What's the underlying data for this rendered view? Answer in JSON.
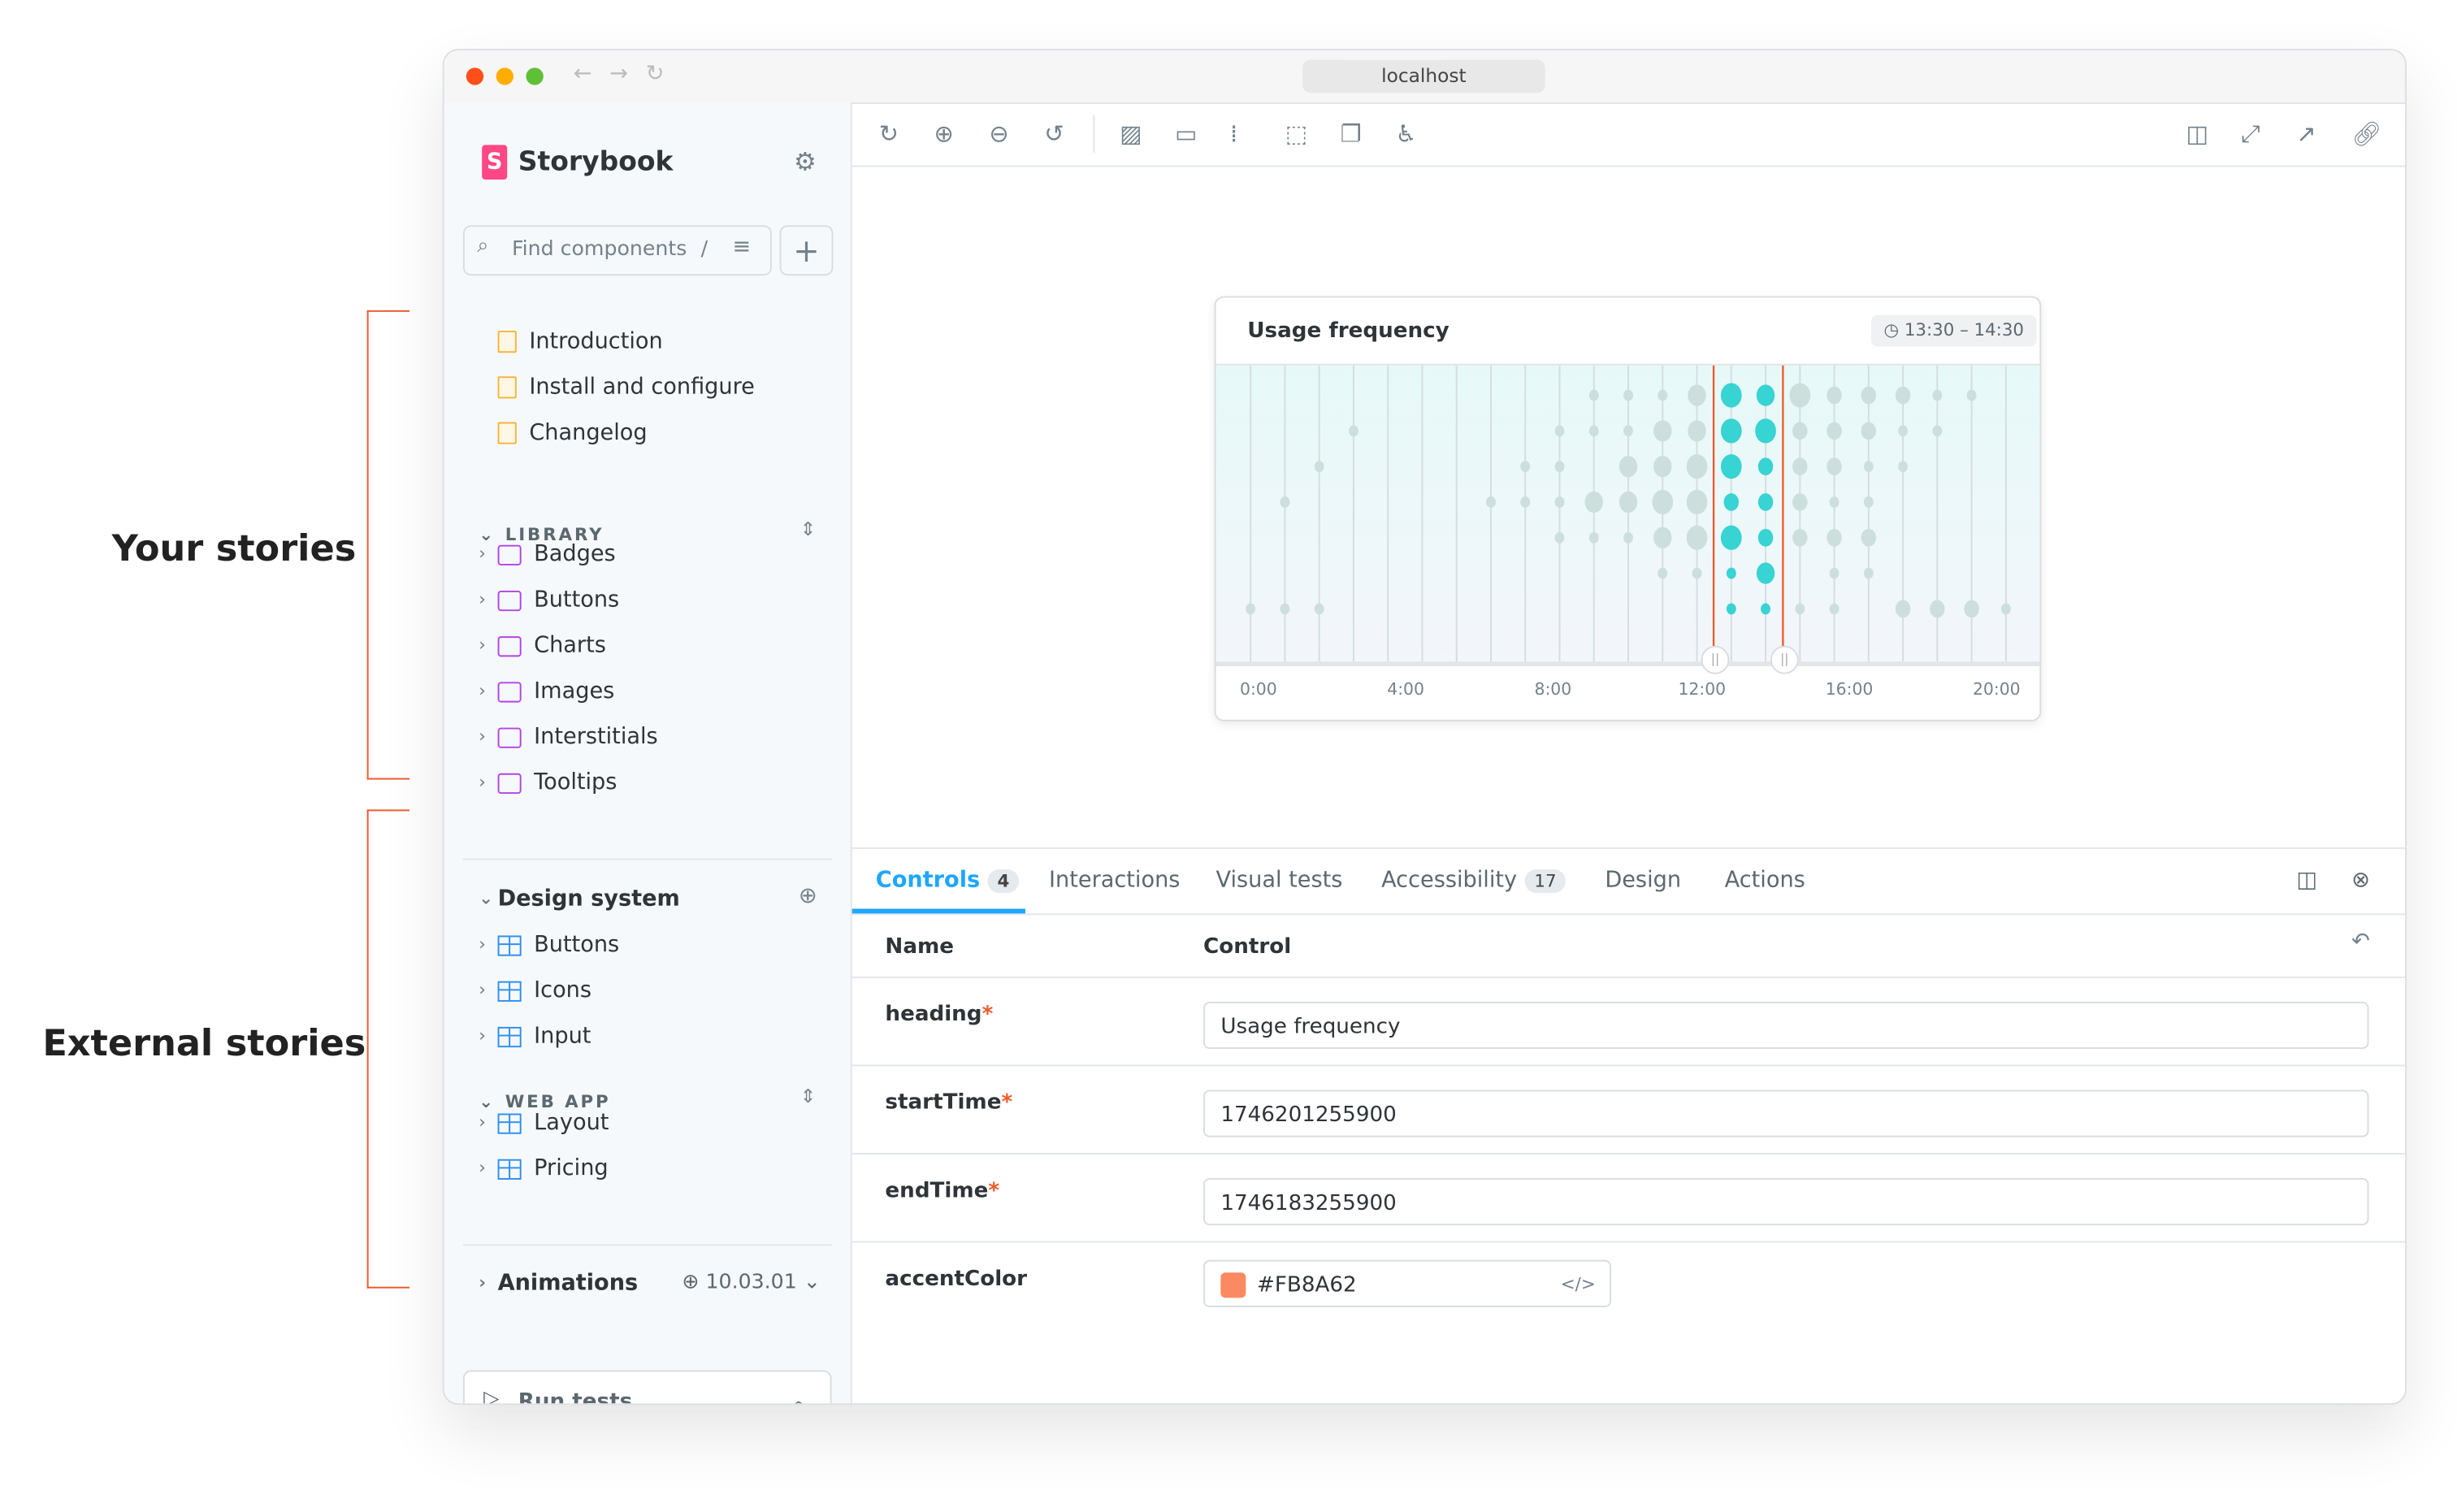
{
  "annotations": {
    "your_stories": "Your stories",
    "external_stories": "External stories"
  },
  "browser": {
    "url": "localhost"
  },
  "sidebar": {
    "brand": "Storybook",
    "search_placeholder": "Find components",
    "search_shortcut": "/",
    "docs": [
      {
        "label": "Introduction"
      },
      {
        "label": "Install and configure"
      },
      {
        "label": "Changelog"
      }
    ],
    "library_label": "LIBRARY",
    "library": [
      {
        "label": "Badges"
      },
      {
        "label": "Buttons"
      },
      {
        "label": "Charts"
      },
      {
        "label": "Images"
      },
      {
        "label": "Interstitials"
      },
      {
        "label": "Tooltips"
      }
    ],
    "design_system": {
      "label": "Design system",
      "items": [
        {
          "label": "Buttons"
        },
        {
          "label": "Icons"
        },
        {
          "label": "Input"
        }
      ]
    },
    "web_app_label": "WEB APP",
    "web_app": [
      {
        "label": "Layout"
      },
      {
        "label": "Pricing"
      }
    ],
    "animations": {
      "label": "Animations",
      "version": "10.03.01"
    },
    "run_tests": "Run tests"
  },
  "chart_data": {
    "type": "scatter",
    "title": "Usage frequency",
    "selection_label": "13:30 – 14:30",
    "x_tick_labels": [
      "0:00",
      "4:00",
      "8:00",
      "12:00",
      "16:00",
      "20:00"
    ],
    "x_unit": "hour",
    "highlight_color": "#38d3d3",
    "base_color": "#cddfdc",
    "selection_line_color": "#f0592a",
    "highlight_hours": [
      14,
      15
    ],
    "rows": [
      [
        0,
        0,
        0,
        0,
        0,
        0,
        0,
        0,
        0,
        0,
        1,
        1,
        1,
        3,
        4,
        3,
        4,
        2,
        2,
        2,
        1,
        1,
        0
      ],
      [
        0,
        0,
        0,
        1,
        0,
        0,
        0,
        0,
        0,
        1,
        1,
        1,
        3,
        3,
        4,
        4,
        2,
        2,
        2,
        1,
        1,
        0,
        0
      ],
      [
        0,
        0,
        1,
        0,
        0,
        0,
        0,
        0,
        1,
        1,
        0,
        3,
        3,
        4,
        4,
        2,
        2,
        2,
        1,
        1,
        0,
        0,
        0
      ],
      [
        0,
        1,
        0,
        0,
        0,
        0,
        0,
        1,
        1,
        1,
        3,
        3,
        4,
        4,
        2,
        2,
        2,
        1,
        1,
        0,
        0,
        0,
        0
      ],
      [
        0,
        0,
        0,
        0,
        0,
        0,
        0,
        0,
        0,
        1,
        1,
        1,
        3,
        4,
        4,
        2,
        2,
        2,
        2,
        0,
        0,
        0,
        0
      ],
      [
        0,
        0,
        0,
        0,
        0,
        0,
        0,
        0,
        0,
        0,
        0,
        0,
        1,
        1,
        1,
        3,
        0,
        1,
        1,
        0,
        0,
        0,
        0
      ],
      [
        1,
        1,
        1,
        0,
        0,
        0,
        0,
        0,
        0,
        0,
        0,
        0,
        0,
        0,
        1,
        1,
        1,
        1,
        0,
        2,
        2,
        2,
        1
      ]
    ]
  },
  "addons": {
    "tabs": [
      {
        "label": "Controls",
        "badge": "4"
      },
      {
        "label": "Interactions"
      },
      {
        "label": "Visual tests"
      },
      {
        "label": "Accessibility",
        "badge": "17"
      },
      {
        "label": "Design"
      },
      {
        "label": "Actions"
      }
    ],
    "col_name": "Name",
    "col_control": "Control",
    "controls": [
      {
        "name": "heading",
        "value": "Usage frequency"
      },
      {
        "name": "startTime",
        "value": "1746201255900"
      },
      {
        "name": "endTime",
        "value": "1746183255900"
      },
      {
        "name": "accentColor",
        "value": "#FB8A62"
      }
    ]
  }
}
